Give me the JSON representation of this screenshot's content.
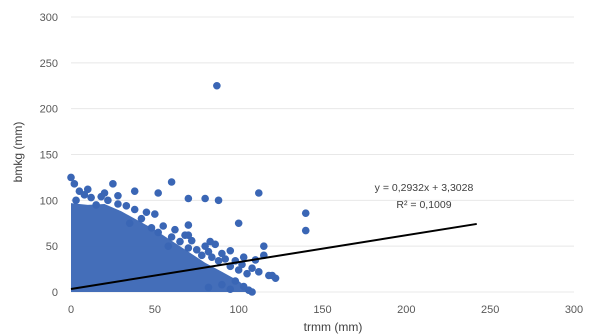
{
  "chart_data": {
    "type": "scatter",
    "xlabel": "trmm (mm)",
    "ylabel": "bmkg (mm)",
    "xlim": [
      0,
      300
    ],
    "ylim": [
      0,
      300
    ],
    "x_ticks": [
      "0",
      "50",
      "100",
      "150",
      "200",
      "250",
      "300"
    ],
    "y_ticks": [
      "0",
      "50",
      "100",
      "150",
      "200",
      "250",
      "300"
    ],
    "grid": "horizontal",
    "colors": {
      "points": "#3a66b5",
      "trendline": "#000000",
      "grid": "#e8e8e8"
    },
    "series": [
      {
        "points": [
          [
            0,
            125
          ],
          [
            2,
            118
          ],
          [
            5,
            110
          ],
          [
            3,
            100
          ],
          [
            8,
            106
          ],
          [
            12,
            103
          ],
          [
            15,
            95
          ],
          [
            18,
            104
          ],
          [
            22,
            100
          ],
          [
            25,
            118
          ],
          [
            28,
            96
          ],
          [
            33,
            94
          ],
          [
            38,
            90
          ],
          [
            45,
            87
          ],
          [
            50,
            85
          ],
          [
            35,
            75
          ],
          [
            42,
            80
          ],
          [
            48,
            70
          ],
          [
            52,
            65
          ],
          [
            55,
            72
          ],
          [
            60,
            60
          ],
          [
            62,
            68
          ],
          [
            58,
            50
          ],
          [
            65,
            55
          ],
          [
            68,
            62
          ],
          [
            70,
            48
          ],
          [
            72,
            56
          ],
          [
            75,
            46
          ],
          [
            78,
            40
          ],
          [
            80,
            50
          ],
          [
            82,
            44
          ],
          [
            84,
            38
          ],
          [
            86,
            52
          ],
          [
            88,
            34
          ],
          [
            90,
            42
          ],
          [
            92,
            36
          ],
          [
            95,
            28
          ],
          [
            98,
            34
          ],
          [
            100,
            24
          ],
          [
            102,
            30
          ],
          [
            105,
            20
          ],
          [
            108,
            26
          ],
          [
            112,
            22
          ],
          [
            115,
            50
          ],
          [
            118,
            18
          ],
          [
            122,
            15
          ],
          [
            60,
            120
          ],
          [
            70,
            102
          ],
          [
            70,
            73
          ],
          [
            70,
            62
          ],
          [
            80,
            102
          ],
          [
            83,
            55
          ],
          [
            87,
            225
          ],
          [
            88,
            100
          ],
          [
            95,
            45
          ],
          [
            100,
            75
          ],
          [
            103,
            38
          ],
          [
            110,
            35
          ],
          [
            112,
            108
          ],
          [
            115,
            40
          ],
          [
            120,
            18
          ],
          [
            140,
            86
          ],
          [
            140,
            67
          ],
          [
            52,
            108
          ],
          [
            38,
            110
          ],
          [
            28,
            105
          ],
          [
            20,
            108
          ],
          [
            10,
            112
          ],
          [
            82,
            5
          ],
          [
            90,
            8
          ],
          [
            95,
            3
          ],
          [
            98,
            12
          ],
          [
            103,
            6
          ],
          [
            106,
            2
          ],
          [
            108,
            0
          ]
        ]
      }
    ],
    "trendline": {
      "slope": 0.2932,
      "intercept": 3.3028,
      "x_range": [
        0,
        242
      ],
      "equation": "y = 0,2932x + 3,3028",
      "r_squared": "R² = 0,1009"
    }
  }
}
